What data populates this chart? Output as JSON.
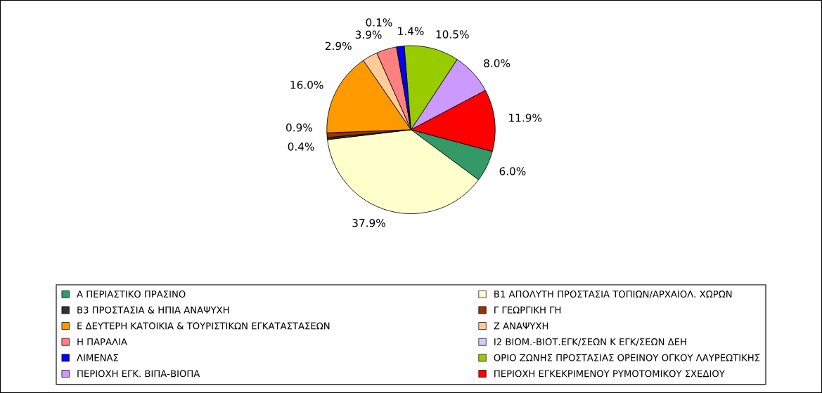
{
  "chart_data": {
    "type": "pie",
    "categories": [
      "Α ΠΕΡΙΑΣΤΙΚΟ ΠΡΑΣΙΝΟ",
      "Β1 ΑΠΟΛΥΤΗ ΠΡΟΣΤΑΣΙΑ ΤΟΠΙΩΝ/ΑΡΧΑΙΟΛ. ΧΩΡΩΝ",
      "Β3 ΠΡΟΣΤΑΣΙΑ & ΗΠΙΑ ΑΝΑΨΥΧΗ",
      "Γ ΓΕΩΡΓΙΚΗ ΓΗ",
      "Ε ΔΕΥΤΕΡΗ ΚΑΤΟΙΚΙΑ & ΤΟΥΡΙΣΤΙΚΩΝ ΕΓΚΑΤΑΣΤΑΣΕΩΝ",
      "Ζ ΑΝΑΨΥΧΗ",
      "Η ΠΑΡΑΛΙΑ",
      "Ι2 ΒΙΟΜ.-ΒΙΟΤ.ΕΓΚ/ΣΕΩΝ Κ ΕΓΚ/ΣΕΩΝ ΔΕΗ",
      "ΛΙΜΕΝΑΣ",
      "ΟΡΙΟ ΖΩΝΗΣ ΠΡΟΣΤΑΣΙΑΣ ΟΡΕΙΝΟΥ ΟΓΚΟΥ ΛΑΥΡΕΩΤΙΚΗΣ",
      "ΠΕΡΙΟΧΗ ΕΓΚ. ΒΙΠΑ-ΒΙΟΠΑ",
      "ΠΕΡΙΟΧΗ ΕΓΚΕΚΡΙΜΕΝΟΥ ΡΥΜΟΤΟΜΙΚΟΥ ΣΧΕΔΙΟΥ"
    ],
    "values": [
      6.0,
      37.9,
      0.4,
      0.9,
      16.0,
      2.9,
      3.9,
      0.1,
      1.4,
      10.5,
      8.0,
      11.9
    ],
    "value_labels": [
      "6.0%",
      "37.9%",
      "0.4%",
      "0.9%",
      "16.0%",
      "2.9%",
      "3.9%",
      "0.1%",
      "1.4%",
      "10.5%",
      "8.0%",
      "11.9%"
    ],
    "colors": [
      "#339966",
      "#ffffcc",
      "#333333",
      "#993300",
      "#ff9900",
      "#ffcc99",
      "#ff8080",
      "#ccccff",
      "#0000ff",
      "#99cc00",
      "#cc99ff",
      "#ff0000"
    ],
    "legend": "bottom"
  }
}
